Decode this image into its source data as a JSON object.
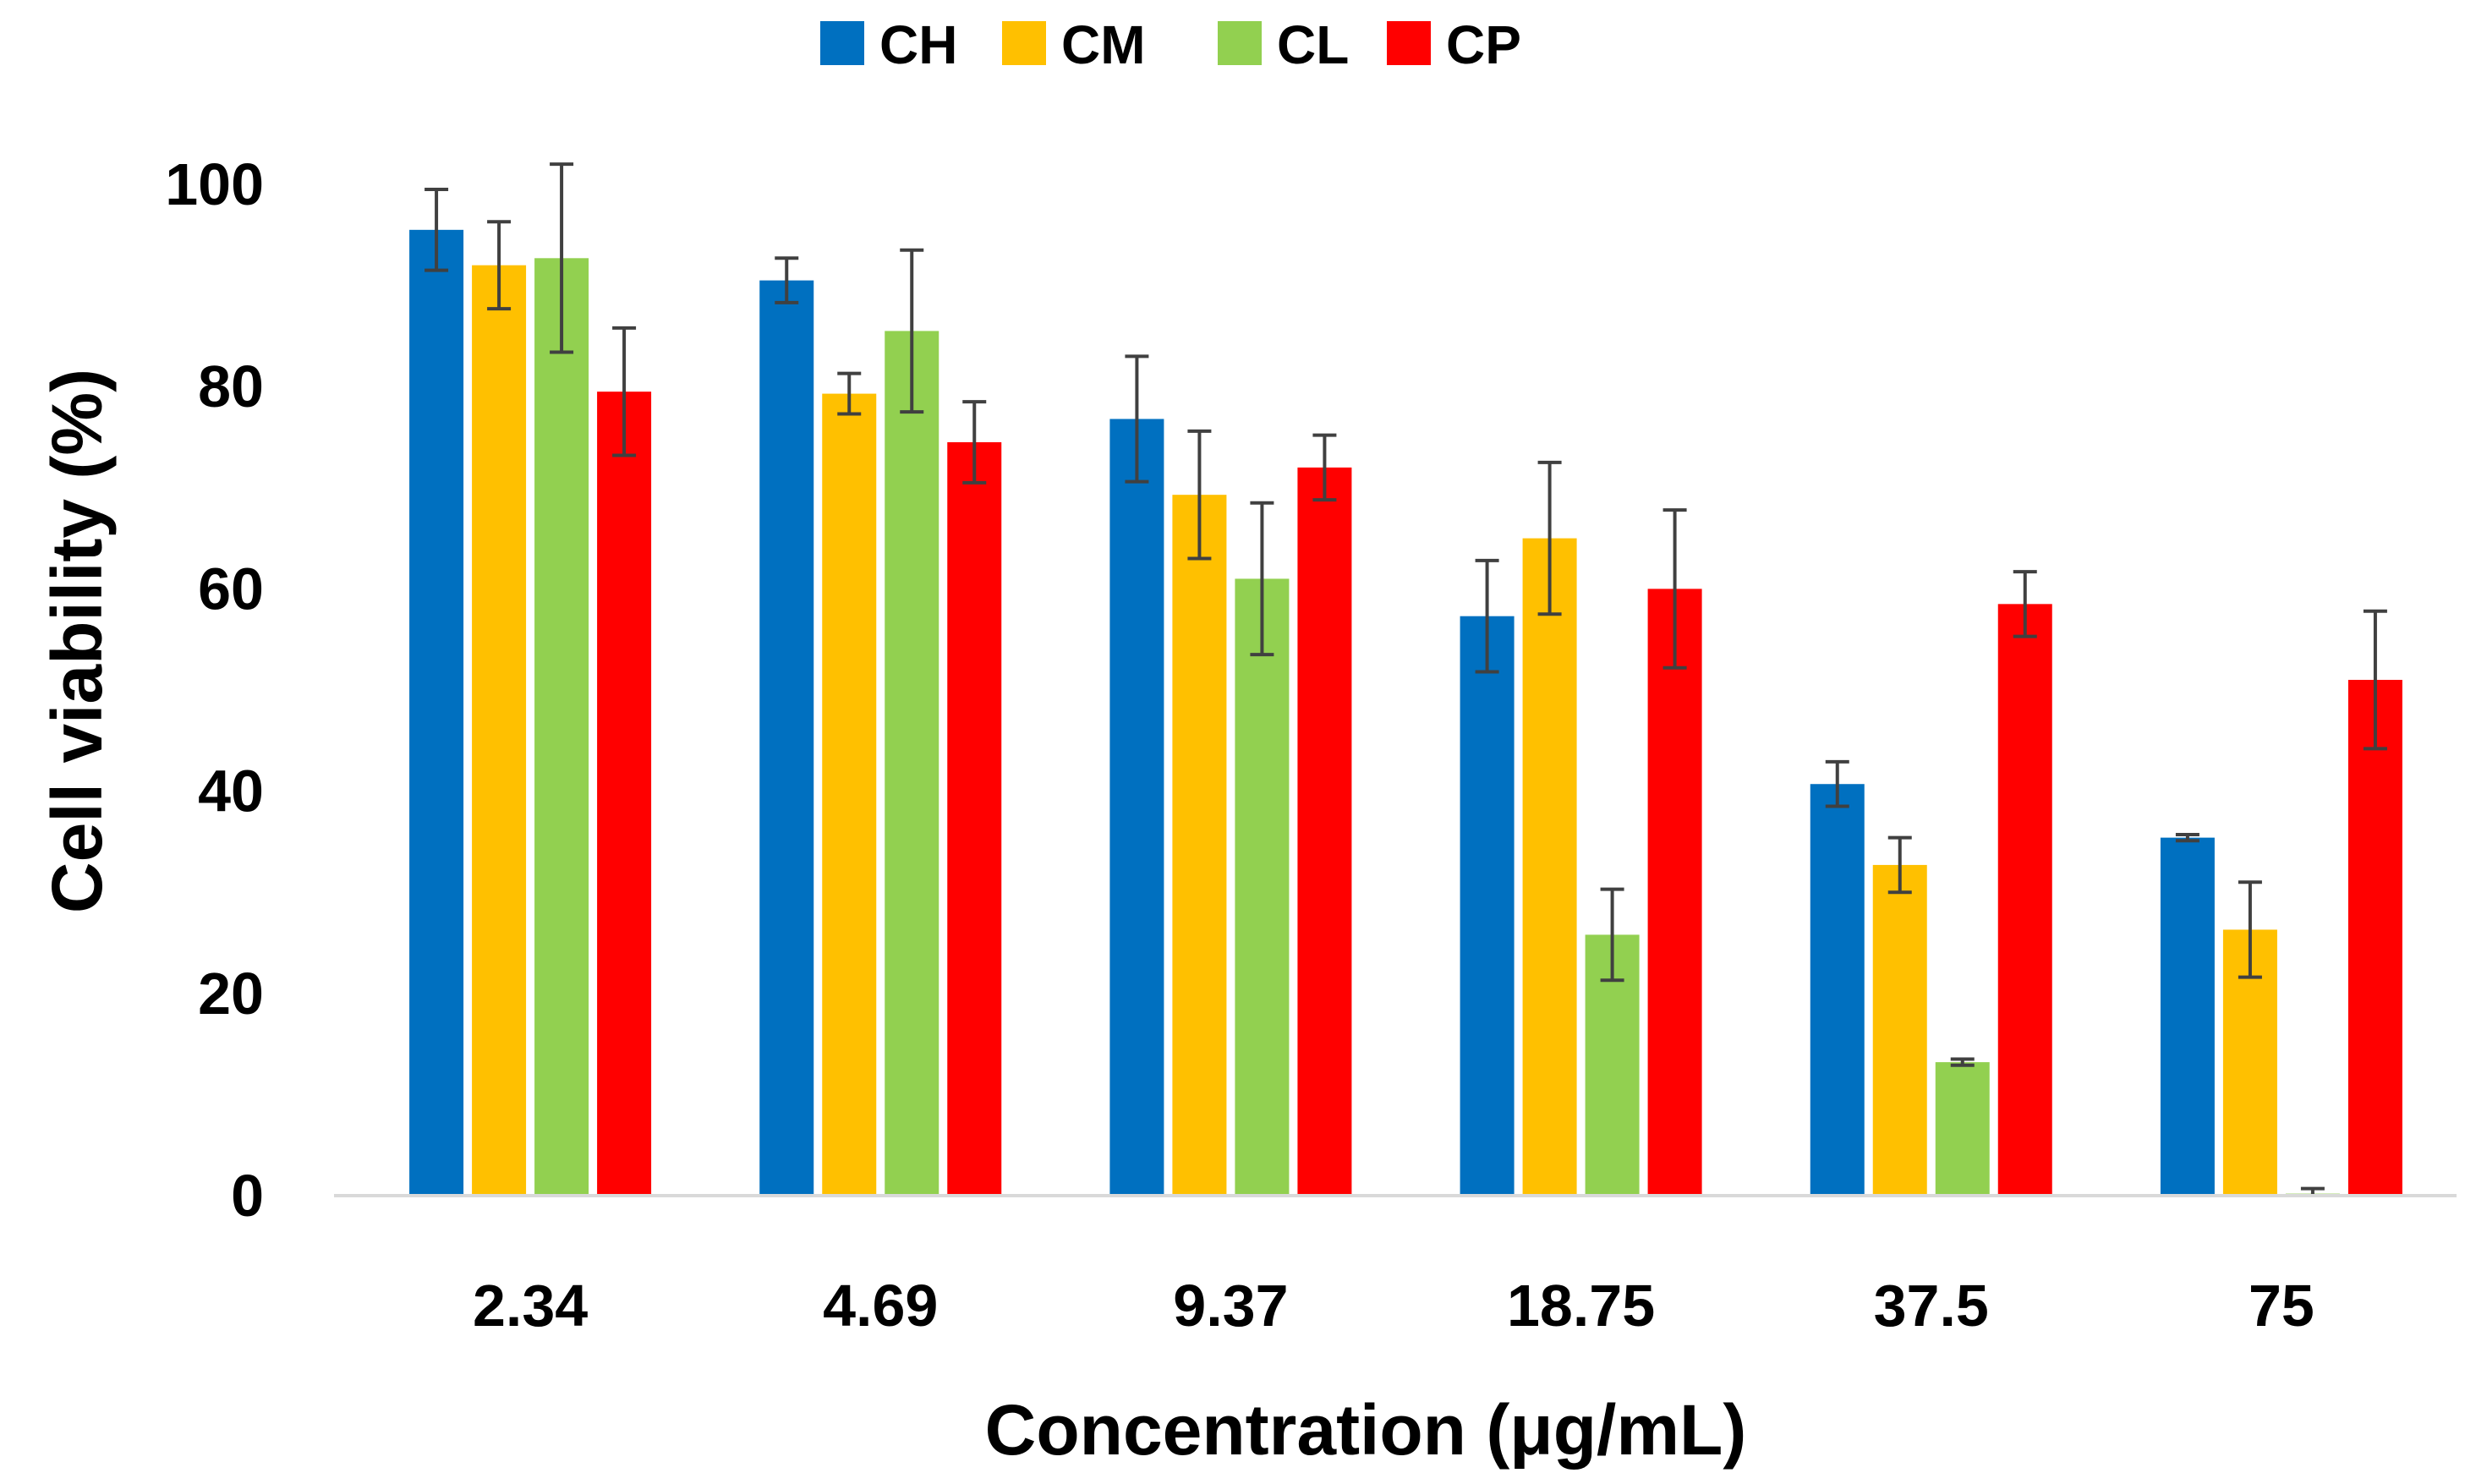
{
  "chart_data": {
    "type": "bar",
    "title": "",
    "xlabel": "Concentration (μg/mL)",
    "ylabel": "Cell viability (%)",
    "ylim": [
      0,
      100
    ],
    "yticks": [
      "0",
      "20",
      "40",
      "60",
      "80",
      "100"
    ],
    "categories": [
      "2.34",
      "4.69",
      "9.37",
      "18.75",
      "37.5",
      "75"
    ],
    "legend_position": "top",
    "grid": false,
    "error_bar_color": "#404040",
    "series": [
      {
        "name": "CH",
        "color": "#0070C0",
        "values": [
          95.5,
          90.5,
          76.8,
          57.3,
          40.7,
          35.4
        ],
        "errors": [
          4.0,
          2.2,
          6.2,
          5.5,
          2.2,
          0.3
        ]
      },
      {
        "name": "CM",
        "color": "#FFC000",
        "values": [
          92.0,
          79.3,
          69.3,
          65.0,
          32.7,
          26.3
        ],
        "errors": [
          4.3,
          2.0,
          6.3,
          7.5,
          2.7,
          4.7
        ]
      },
      {
        "name": "CL",
        "color": "#92D050",
        "values": [
          92.7,
          85.5,
          61.0,
          25.8,
          13.2,
          0.2
        ],
        "errors": [
          9.3,
          8.0,
          7.5,
          4.5,
          0.3,
          0.5
        ]
      },
      {
        "name": "CP",
        "color": "#FF0000",
        "values": [
          79.5,
          74.5,
          72.0,
          60.0,
          58.5,
          51.0
        ],
        "errors": [
          6.3,
          4.0,
          3.2,
          7.8,
          3.2,
          6.8
        ]
      }
    ]
  }
}
